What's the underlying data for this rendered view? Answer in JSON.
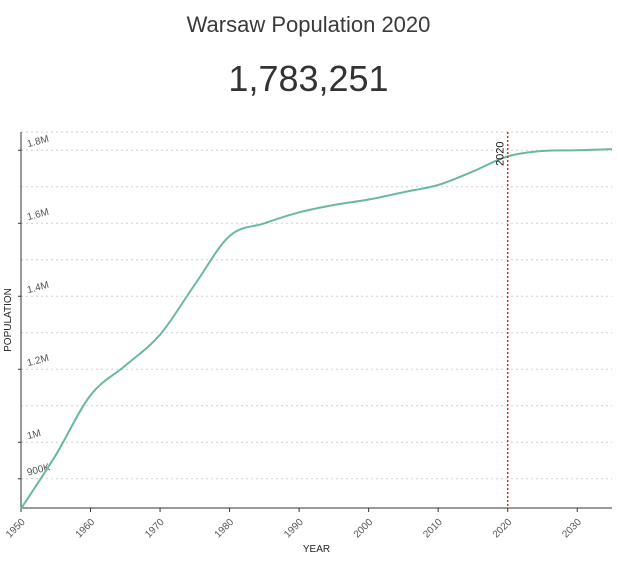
{
  "header": {
    "title": "Warsaw Population 2020",
    "value": "1,783,251"
  },
  "chart_data": {
    "type": "line",
    "title": "Warsaw Population 2020",
    "xlabel": "YEAR",
    "ylabel": "POPULATION",
    "xlim": [
      1950,
      2035
    ],
    "ylim": [
      820000,
      1850000
    ],
    "x_ticks": [
      1950,
      1960,
      1970,
      1980,
      1990,
      2000,
      2010,
      2020,
      2030
    ],
    "y_ticks": [
      {
        "value": 900000,
        "label": "900K"
      },
      {
        "value": 1000000,
        "label": "1M"
      },
      {
        "value": 1200000,
        "label": "1.2M"
      },
      {
        "value": 1400000,
        "label": "1.4M"
      },
      {
        "value": 1600000,
        "label": "1.6M"
      },
      {
        "value": 1800000,
        "label": "1.8M"
      }
    ],
    "grid": true,
    "line_color": "#6bb8a0",
    "marker": {
      "x": 2020,
      "label": "2020",
      "color": "#e0262b"
    },
    "series": [
      {
        "x": [
          1950,
          1955,
          1960,
          1965,
          1970,
          1975,
          1980,
          1985,
          1990,
          1995,
          2000,
          2005,
          2010,
          2015,
          2020,
          2025,
          2030,
          2035
        ],
        "values": [
          818000,
          965000,
          1129000,
          1210000,
          1295000,
          1432000,
          1565000,
          1600000,
          1630000,
          1650000,
          1665000,
          1685000,
          1705000,
          1742000,
          1783251,
          1798000,
          1800000,
          1803000
        ]
      }
    ]
  }
}
